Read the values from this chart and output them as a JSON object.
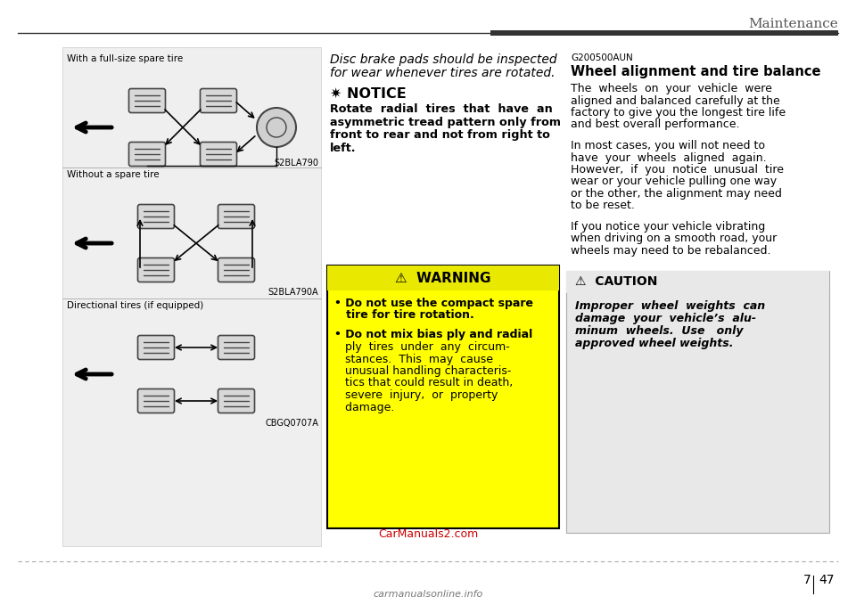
{
  "bg_color": "#ffffff",
  "title_text": "Maintenance",
  "left_panel_bg": "#efefef",
  "left_panel_border": "#cccccc",
  "section1_label": "With a full-size spare tire",
  "section1_code": "S2BLA790",
  "section2_label": "Without a spare tire",
  "section2_code": "S2BLA790A",
  "section3_label": "Directional tires (if equipped)",
  "section3_code": "CBGQ0707A",
  "italic_text1": "Disc brake pads should be inspected",
  "italic_text2": "for wear whenever tires are rotated.",
  "notice_star": "✷ NOTICE",
  "notice_body_lines": [
    "Rotate  radial  tires  that  have  an",
    "asymmetric tread pattern only from",
    "front to rear and not from right to",
    "left."
  ],
  "warning_header": "⚠  WARNING",
  "warning_b1_line1": "• Do not use the compact spare",
  "warning_b1_line2": "   tire for tire rotation.",
  "warning_b2_line1": "• Do not mix bias ply and radial",
  "warning_b2_lines": [
    "   ply  tires  under  any  circum-",
    "   stances.  This  may  cause",
    "   unusual handling characteris-",
    "   tics that could result in death,",
    "   severe  injury,  or  property",
    "   damage."
  ],
  "warning_bg": "#ffff00",
  "warning_header_bg": "#e8e800",
  "warning_border": "#000000",
  "g200_code": "G200500AUN",
  "right_header": "Wheel alignment and tire balance",
  "right_p1_lines": [
    "The  wheels  on  your  vehicle  were",
    "aligned and balanced carefully at the",
    "factory to give you the longest tire life",
    "and best overall performance."
  ],
  "right_p2_lines": [
    "In most cases, you will not need to",
    "have  your  wheels  aligned  again.",
    "However,  if  you  notice  unusual  tire",
    "wear or your vehicle pulling one way",
    "or the other, the alignment may need",
    "to be reset."
  ],
  "right_p3_lines": [
    "If you notice your vehicle vibrating",
    "when driving on a smooth road, your",
    "wheels may need to be rebalanced."
  ],
  "caution_header": "⚠  CAUTION",
  "caution_body_lines": [
    "Improper  wheel  weights  can",
    "damage  your  vehicle’s  alu-",
    "minum  wheels.  Use   only",
    "approved wheel weights."
  ],
  "caution_bg": "#e8e8e8",
  "caution_border": "#aaaaaa",
  "footer_url": "CarManuals2.com",
  "footer_url_color": "#cc0000",
  "dashed_line_color": "#aaaaaa",
  "logo_text": "carmanualsonline.info",
  "tire_color": "#444444",
  "tire_fill": "#d8d8d8",
  "arrow_color": "#000000"
}
